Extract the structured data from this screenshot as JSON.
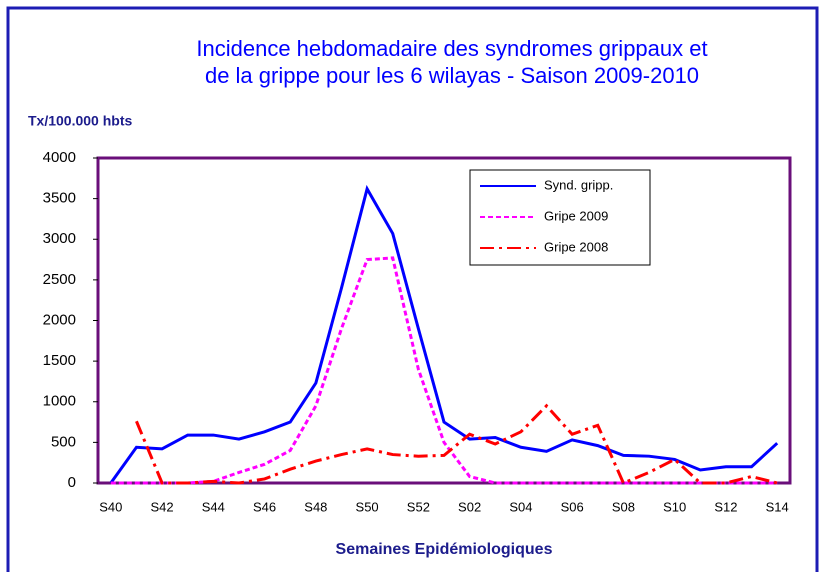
{
  "chart_data": {
    "type": "line",
    "title": "Incidence hebdomadaire des syndromes grippaux et",
    "subtitle": "de la grippe pour les 6 wilayas - Saison 2009-2010",
    "y_label": "Tx/100.000 hbts",
    "x_label": "Semaines Epidémiologiques",
    "categories": [
      "S40",
      null,
      "S42",
      null,
      "S44",
      null,
      "S46",
      null,
      "S48",
      null,
      "S50",
      null,
      "S52",
      null,
      "S02",
      null,
      "S04",
      null,
      "S06",
      null,
      "S08",
      null,
      "S10",
      null,
      "S12",
      null,
      "S14"
    ],
    "series": [
      {
        "name": "Synd. gripp.",
        "color": "#0000ff",
        "style": "solid",
        "values": [
          0,
          440,
          420,
          590,
          590,
          540,
          630,
          750,
          1230,
          2400,
          3620,
          3070,
          1900,
          750,
          540,
          560,
          440,
          390,
          530,
          460,
          340,
          330,
          290,
          160,
          200,
          200,
          490
        ]
      },
      {
        "name": "Gripe 2009",
        "color": "#ff00ff",
        "style": "dashed",
        "values": [
          0,
          0,
          0,
          0,
          20,
          130,
          230,
          400,
          950,
          1900,
          2750,
          2770,
          1400,
          500,
          80,
          0,
          0,
          0,
          0,
          0,
          0,
          0,
          0,
          0,
          0,
          0,
          0
        ]
      },
      {
        "name": "Gripe 2008",
        "color": "#ff0000",
        "style": "dashdot",
        "values": [
          null,
          760,
          0,
          0,
          20,
          0,
          50,
          170,
          270,
          350,
          420,
          350,
          330,
          340,
          600,
          480,
          630,
          950,
          600,
          710,
          0,
          130,
          290,
          0,
          0,
          80,
          0
        ]
      }
    ],
    "ylim": [
      0,
      4000
    ],
    "yticks": [
      0,
      500,
      1000,
      1500,
      2000,
      2500,
      3000,
      3500,
      4000
    ],
    "grid": false,
    "legend": "top-right"
  }
}
